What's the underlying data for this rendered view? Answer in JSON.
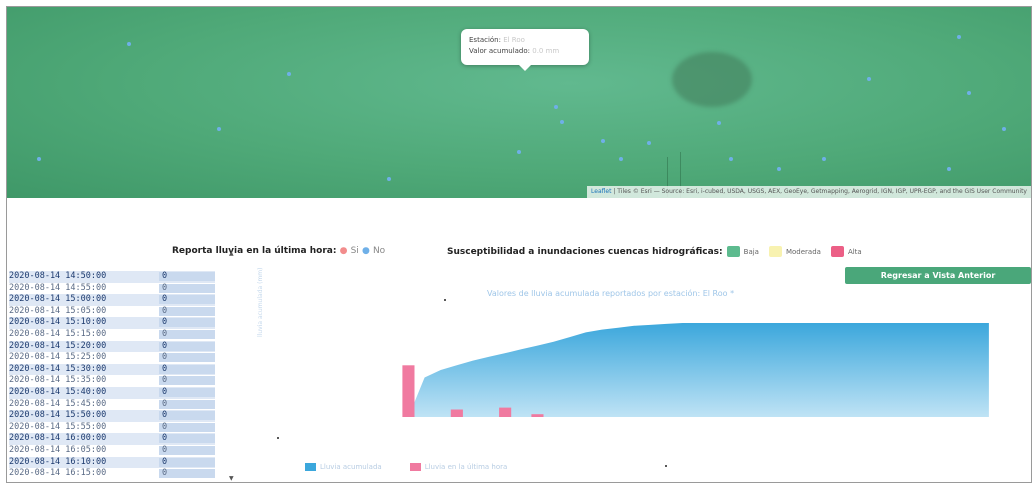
{
  "map": {
    "popup": {
      "line1": "Estación:",
      "line1_faint": "El Roo",
      "line2": "Valor acumulado:",
      "line2_faint": "0.0 mm"
    },
    "attribution_link": "Leaflet",
    "attribution": " | Tiles © Esri — Source: Esri, i-cubed, USDA, USGS, AEX, GeoEye, Getmapping, Aerogrid, IGN, IGP, UPR-EGP, and the GIS User Community"
  },
  "rain_legend": {
    "label": "Reporta lluvia en la última hora:",
    "yes_label": "Si",
    "no_label": "No",
    "yes_color": "#f28c8c",
    "no_color": "#6fb0e8"
  },
  "susceptibility_legend": {
    "label": "Susceptibilidad a inundaciones cuencas hidrográficas:",
    "items": [
      {
        "label": "Baja",
        "color": "#5dbb8f"
      },
      {
        "label": "Moderada",
        "color": "#f8f2b0"
      },
      {
        "label": "Alta",
        "color": "#ec5f86"
      }
    ]
  },
  "back_button": "Regresar a Vista Anterior",
  "table": {
    "rows": [
      {
        "time": "2020-08-14 14:50:00",
        "value": "0"
      },
      {
        "time": "2020-08-14 14:55:00",
        "value": "0"
      },
      {
        "time": "2020-08-14 15:00:00",
        "value": "0"
      },
      {
        "time": "2020-08-14 15:05:00",
        "value": "0"
      },
      {
        "time": "2020-08-14 15:10:00",
        "value": "0"
      },
      {
        "time": "2020-08-14 15:15:00",
        "value": "0"
      },
      {
        "time": "2020-08-14 15:20:00",
        "value": "0"
      },
      {
        "time": "2020-08-14 15:25:00",
        "value": "0"
      },
      {
        "time": "2020-08-14 15:30:00",
        "value": "0"
      },
      {
        "time": "2020-08-14 15:35:00",
        "value": "0"
      },
      {
        "time": "2020-08-14 15:40:00",
        "value": "0"
      },
      {
        "time": "2020-08-14 15:45:00",
        "value": "0"
      },
      {
        "time": "2020-08-14 15:50:00",
        "value": "0"
      },
      {
        "time": "2020-08-14 15:55:00",
        "value": "0"
      },
      {
        "time": "2020-08-14 16:00:00",
        "value": "0"
      },
      {
        "time": "2020-08-14 16:05:00",
        "value": "0"
      },
      {
        "time": "2020-08-14 16:10:00",
        "value": "0"
      },
      {
        "time": "2020-08-14 16:15:00",
        "value": "0"
      }
    ]
  },
  "chart": {
    "title": "Valores de lluvia acumulada reportados por estación: El Roo *",
    "ylabel": "lluvia acumulada (mm)",
    "series1_label": "Lluvia acumulada",
    "series2_label": "Lluvia en la última hora",
    "series1_color": "#3ba7dc",
    "series2_color": "#f07aa0"
  },
  "chart_data": {
    "type": "area",
    "title": "Valores de lluvia acumulada reportados por estación: El Roo *",
    "ylabel": "lluvia acumulada (mm)",
    "x_count": 40,
    "series": [
      {
        "name": "Lluvia acumulada",
        "type": "area",
        "values": [
          0,
          0,
          0,
          0,
          0.42,
          0.5,
          0.55,
          0.6,
          0.64,
          0.68,
          0.72,
          0.76,
          0.8,
          0.85,
          0.9,
          0.93,
          0.95,
          0.97,
          0.98,
          0.99,
          1,
          1,
          1,
          1,
          1,
          1,
          1,
          1,
          1,
          1,
          1,
          1,
          1,
          1,
          1,
          1,
          1,
          1,
          1,
          1
        ]
      },
      {
        "name": "Lluvia en la última hora",
        "type": "bar",
        "values": [
          0,
          0,
          0,
          0.55,
          0,
          0,
          0.08,
          0,
          0,
          0.1,
          0,
          0.03,
          0,
          0,
          0,
          0,
          0,
          0,
          0,
          0,
          0,
          0,
          0,
          0,
          0,
          0,
          0,
          0,
          0,
          0,
          0,
          0,
          0,
          0,
          0,
          0,
          0,
          0,
          0,
          0
        ]
      }
    ]
  }
}
